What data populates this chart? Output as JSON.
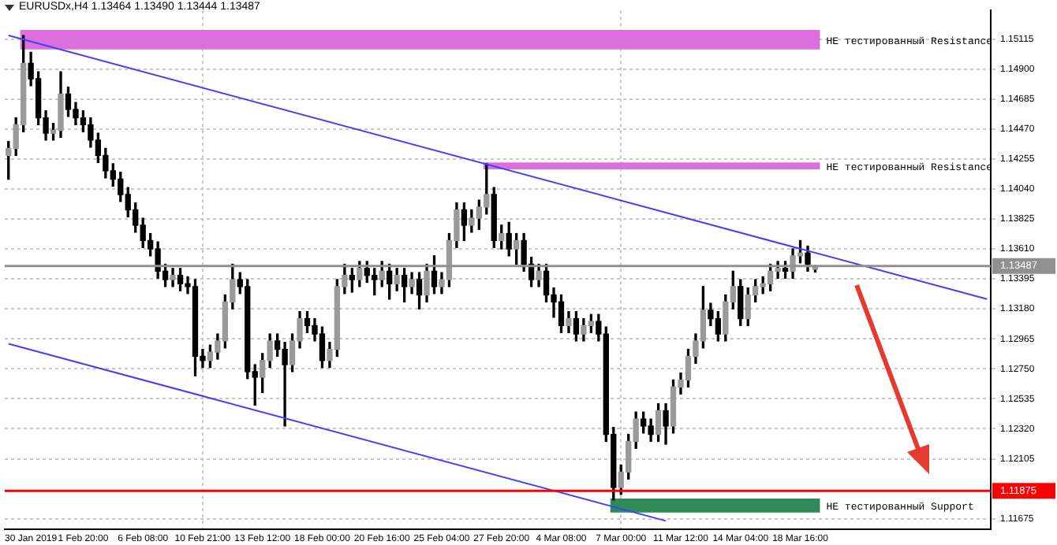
{
  "chart_data": {
    "type": "candlestick",
    "title": "EURUSDx,H4 1.13464 1.13490 1.13444 1.13487",
    "categories": [
      null,
      null,
      null,
      "30 Jan 2019",
      null,
      null,
      null,
      null,
      null,
      null,
      "1 Feb 20:00",
      null,
      null,
      null,
      null,
      null,
      null,
      null,
      "6 Feb 08:00",
      null,
      null,
      null,
      null,
      null,
      null,
      null,
      "10 Feb 21:00",
      null,
      null,
      null,
      null,
      null,
      null,
      null,
      "13 Feb 12:00",
      null,
      null,
      null,
      null,
      null,
      null,
      null,
      "18 Feb 00:00",
      null,
      null,
      null,
      null,
      null,
      null,
      null,
      "20 Feb 16:00",
      null,
      null,
      null,
      null,
      null,
      null,
      null,
      "25 Feb 04:00",
      null,
      null,
      null,
      null,
      null,
      null,
      null,
      "27 Feb 20:00",
      null,
      null,
      null,
      null,
      null,
      null,
      null,
      "4 Mar 08:00",
      null,
      null,
      null,
      null,
      null,
      null,
      null,
      "7 Mar 00:00",
      null,
      null,
      null,
      null,
      null,
      null,
      null,
      "11 Mar 12:00",
      null,
      null,
      null,
      null,
      null,
      null,
      null,
      "14 Mar 04:00",
      null,
      null,
      null,
      null,
      null,
      null,
      null,
      "18 Mar 16:00",
      null,
      null,
      null,
      null,
      null,
      null,
      null,
      null,
      null,
      null,
      null,
      null,
      null,
      null,
      null,
      null,
      null,
      null,
      null,
      null,
      null,
      null,
      null,
      null,
      null
    ],
    "ohlc": [
      [
        1.1428,
        1.1438,
        1.1411,
        1.1433
      ],
      [
        1.1433,
        1.1455,
        1.1428,
        1.145
      ],
      [
        1.145,
        1.1514,
        1.1445,
        1.1494
      ],
      [
        1.1494,
        1.1502,
        1.1478,
        1.1483
      ],
      [
        1.1483,
        1.1488,
        1.145,
        1.1455
      ],
      [
        1.1455,
        1.146,
        1.1439,
        1.1444
      ],
      [
        1.1444,
        1.1451,
        1.1439,
        1.1446
      ],
      [
        1.1446,
        1.1488,
        1.1441,
        1.1472
      ],
      [
        1.1472,
        1.1477,
        1.1456,
        1.1461
      ],
      [
        1.1461,
        1.1466,
        1.145,
        1.1455
      ],
      [
        1.1455,
        1.146,
        1.1445,
        1.145
      ],
      [
        1.145,
        1.1455,
        1.1434,
        1.1439
      ],
      [
        1.1439,
        1.1444,
        1.1423,
        1.1428
      ],
      [
        1.1428,
        1.1433,
        1.1412,
        1.1417
      ],
      [
        1.1417,
        1.1422,
        1.1406,
        1.1411
      ],
      [
        1.1411,
        1.1416,
        1.1395,
        1.14
      ],
      [
        1.14,
        1.1405,
        1.1384,
        1.1389
      ],
      [
        1.1389,
        1.1394,
        1.1373,
        1.1378
      ],
      [
        1.1378,
        1.1383,
        1.1362,
        1.1367
      ],
      [
        1.1367,
        1.1372,
        1.1356,
        1.1361
      ],
      [
        1.1361,
        1.1366,
        1.134,
        1.1345
      ],
      [
        1.1345,
        1.135,
        1.1334,
        1.1339
      ],
      [
        1.1339,
        1.1347,
        1.1334,
        1.1342
      ],
      [
        1.1342,
        1.1347,
        1.1331,
        1.1336
      ],
      [
        1.1336,
        1.1341,
        1.1329,
        1.1334
      ],
      [
        1.1334,
        1.1339,
        1.127,
        1.1284
      ],
      [
        1.1284,
        1.1289,
        1.1276,
        1.1281
      ],
      [
        1.1281,
        1.1292,
        1.1276,
        1.1287
      ],
      [
        1.1287,
        1.13,
        1.1282,
        1.1295
      ],
      [
        1.1295,
        1.1328,
        1.129,
        1.1323
      ],
      [
        1.1323,
        1.135,
        1.1318,
        1.1339
      ],
      [
        1.1339,
        1.1344,
        1.1329,
        1.1334
      ],
      [
        1.1334,
        1.1339,
        1.1268,
        1.1273
      ],
      [
        1.1273,
        1.1278,
        1.1249,
        1.1269
      ],
      [
        1.1269,
        1.1286,
        1.1258,
        1.1281
      ],
      [
        1.1281,
        1.13,
        1.1276,
        1.1295
      ],
      [
        1.1295,
        1.13,
        1.1284,
        1.1289
      ],
      [
        1.1289,
        1.1294,
        1.1234,
        1.1278
      ],
      [
        1.1278,
        1.13,
        1.1273,
        1.1295
      ],
      [
        1.1295,
        1.1316,
        1.129,
        1.1311
      ],
      [
        1.1311,
        1.1316,
        1.1301,
        1.1306
      ],
      [
        1.1306,
        1.1311,
        1.1295,
        1.13
      ],
      [
        1.13,
        1.1305,
        1.1276,
        1.1281
      ],
      [
        1.1281,
        1.1294,
        1.1276,
        1.1289
      ],
      [
        1.1289,
        1.1339,
        1.1284,
        1.1334
      ],
      [
        1.1334,
        1.135,
        1.1329,
        1.1342
      ],
      [
        1.1342,
        1.1347,
        1.133,
        1.1339
      ],
      [
        1.1339,
        1.1352,
        1.1334,
        1.1347
      ],
      [
        1.1347,
        1.1352,
        1.1337,
        1.1342
      ],
      [
        1.1342,
        1.1347,
        1.1328,
        1.1339
      ],
      [
        1.1339,
        1.1352,
        1.1334,
        1.1345
      ],
      [
        1.1345,
        1.135,
        1.1325,
        1.1336
      ],
      [
        1.1336,
        1.1347,
        1.1331,
        1.1342
      ],
      [
        1.1342,
        1.1347,
        1.1323,
        1.1334
      ],
      [
        1.1334,
        1.1344,
        1.1329,
        1.1339
      ],
      [
        1.1339,
        1.1344,
        1.1318,
        1.1328
      ],
      [
        1.1328,
        1.135,
        1.1323,
        1.1345
      ],
      [
        1.1345,
        1.1356,
        1.1329,
        1.1334
      ],
      [
        1.1334,
        1.1344,
        1.1329,
        1.1339
      ],
      [
        1.1339,
        1.1372,
        1.1334,
        1.1367
      ],
      [
        1.1367,
        1.1394,
        1.1362,
        1.1389
      ],
      [
        1.1389,
        1.1394,
        1.1367,
        1.1378
      ],
      [
        1.1378,
        1.1389,
        1.1373,
        1.1383
      ],
      [
        1.1383,
        1.1396,
        1.1375,
        1.1391
      ],
      [
        1.1391,
        1.1422,
        1.1386,
        1.14
      ],
      [
        1.14,
        1.1405,
        1.1362,
        1.1367
      ],
      [
        1.1367,
        1.1378,
        1.1361,
        1.1372
      ],
      [
        1.1372,
        1.138,
        1.1356,
        1.1361
      ],
      [
        1.1361,
        1.1372,
        1.135,
        1.1367
      ],
      [
        1.1367,
        1.1372,
        1.1345,
        1.135
      ],
      [
        1.135,
        1.1355,
        1.1334,
        1.1339
      ],
      [
        1.1339,
        1.135,
        1.1334,
        1.1345
      ],
      [
        1.1345,
        1.135,
        1.1323,
        1.1328
      ],
      [
        1.1328,
        1.1333,
        1.1312,
        1.1323
      ],
      [
        1.1323,
        1.1328,
        1.1301,
        1.1306
      ],
      [
        1.1306,
        1.1316,
        1.1301,
        1.1311
      ],
      [
        1.1311,
        1.1316,
        1.1295,
        1.13
      ],
      [
        1.13,
        1.1311,
        1.1295,
        1.1306
      ],
      [
        1.1306,
        1.1314,
        1.1301,
        1.1309
      ],
      [
        1.1309,
        1.1314,
        1.1295,
        1.13
      ],
      [
        1.13,
        1.1305,
        1.1223,
        1.1228
      ],
      [
        1.1228,
        1.1233,
        1.1181,
        1.119
      ],
      [
        1.119,
        1.1206,
        1.1185,
        1.1201
      ],
      [
        1.1201,
        1.1228,
        1.1196,
        1.1223
      ],
      [
        1.1223,
        1.1244,
        1.1218,
        1.1239
      ],
      [
        1.1239,
        1.1244,
        1.1229,
        1.1234
      ],
      [
        1.1234,
        1.1239,
        1.1223,
        1.1228
      ],
      [
        1.1228,
        1.125,
        1.1223,
        1.1245
      ],
      [
        1.1245,
        1.125,
        1.1221,
        1.1234
      ],
      [
        1.1234,
        1.1267,
        1.1229,
        1.1262
      ],
      [
        1.1262,
        1.1272,
        1.1257,
        1.1267
      ],
      [
        1.1267,
        1.1289,
        1.1262,
        1.1284
      ],
      [
        1.1284,
        1.13,
        1.1279,
        1.1295
      ],
      [
        1.1295,
        1.1334,
        1.129,
        1.1317
      ],
      [
        1.1317,
        1.1322,
        1.1306,
        1.1311
      ],
      [
        1.1311,
        1.1316,
        1.1295,
        1.13
      ],
      [
        1.13,
        1.1328,
        1.1295,
        1.1323
      ],
      [
        1.1323,
        1.1345,
        1.1318,
        1.1334
      ],
      [
        1.1334,
        1.1339,
        1.1306,
        1.1311
      ],
      [
        1.1311,
        1.1333,
        1.1306,
        1.1328
      ],
      [
        1.1328,
        1.1339,
        1.1323,
        1.1334
      ],
      [
        1.1334,
        1.1341,
        1.1329,
        1.1336
      ],
      [
        1.1336,
        1.135,
        1.1331,
        1.1345
      ],
      [
        1.1345,
        1.1352,
        1.134,
        1.1347
      ],
      [
        1.1347,
        1.1352,
        1.134,
        1.1345
      ],
      [
        1.1345,
        1.1361,
        1.134,
        1.1356
      ],
      [
        1.1356,
        1.1367,
        1.1351,
        1.1358
      ],
      [
        1.1358,
        1.1363,
        1.1345,
        1.135
      ],
      [
        1.13464,
        1.1349,
        1.13444,
        1.13487
      ],
      null,
      null,
      null,
      null,
      null,
      null,
      null,
      null,
      null,
      null,
      null,
      null,
      null,
      null,
      null,
      null,
      null,
      null,
      null,
      null,
      null,
      null,
      null
    ],
    "series": [
      {
        "type": "line",
        "color": "#4040ff",
        "values": [
          1.1514,
          null,
          null,
          null,
          null,
          null,
          null,
          null,
          null,
          null,
          null,
          null,
          null,
          null,
          null,
          null,
          null,
          null,
          null,
          null,
          null,
          null,
          null,
          null,
          null,
          null,
          null,
          null,
          null,
          null,
          null,
          null,
          null,
          null,
          null,
          null,
          null,
          null,
          null,
          null,
          null,
          null,
          null,
          null,
          null,
          null,
          null,
          null,
          null,
          null,
          null,
          null,
          null,
          null,
          null,
          null,
          null,
          null,
          null,
          null,
          null,
          null,
          null,
          null,
          null,
          null,
          null,
          null,
          null,
          null,
          null,
          null,
          null,
          null,
          null,
          null,
          null,
          null,
          null,
          null,
          null,
          null,
          null,
          null,
          null,
          null,
          null,
          null,
          null,
          null,
          null,
          null,
          null,
          null,
          null,
          null,
          null,
          null,
          null,
          null,
          null,
          null,
          null,
          null,
          null,
          null,
          null,
          null,
          null,
          null,
          null,
          null,
          null,
          null,
          null,
          null,
          null,
          null,
          null,
          null,
          null,
          null,
          null,
          null,
          null,
          null,
          null,
          null,
          null,
          null,
          null,
          1.1325
        ]
      },
      {
        "type": "line",
        "color": "#4040ff",
        "values": [
          1.1293,
          null,
          null,
          null,
          null,
          null,
          null,
          null,
          null,
          null,
          null,
          null,
          null,
          null,
          null,
          null,
          null,
          null,
          null,
          null,
          null,
          null,
          null,
          null,
          null,
          null,
          null,
          null,
          null,
          null,
          null,
          null,
          null,
          null,
          null,
          null,
          null,
          null,
          null,
          null,
          null,
          null,
          null,
          null,
          null,
          null,
          null,
          null,
          null,
          null,
          null,
          null,
          null,
          null,
          null,
          null,
          null,
          null,
          null,
          null,
          null,
          null,
          null,
          null,
          null,
          null,
          null,
          null,
          null,
          null,
          null,
          null,
          null,
          null,
          null,
          null,
          null,
          null,
          null,
          null,
          null,
          null,
          null,
          null,
          null,
          null,
          null,
          null,
          1.1166,
          null,
          null,
          null,
          null,
          null,
          null,
          null,
          null,
          null,
          null,
          null,
          null,
          null,
          null,
          null,
          null,
          null,
          null,
          null,
          null,
          null,
          null,
          null,
          null,
          null,
          null,
          null,
          null,
          null,
          null,
          null,
          null,
          null,
          null,
          null,
          null,
          null,
          null,
          null,
          null,
          null,
          null,
          null
        ]
      }
    ],
    "ylim": [
      1.116,
      1.1532
    ],
    "yticks": [
      {
        "value": 1.11675,
        "label": "1.11675"
      },
      {
        "value": 1.12105,
        "label": "1.12105"
      },
      {
        "value": 1.1232,
        "label": "1.12320"
      },
      {
        "value": 1.12535,
        "label": "1.12535"
      },
      {
        "value": 1.1275,
        "label": "1.12750"
      },
      {
        "value": 1.12965,
        "label": "1.12965"
      },
      {
        "value": 1.1318,
        "label": "1.13180"
      },
      {
        "value": 1.13395,
        "label": "1.13395"
      },
      {
        "value": 1.1361,
        "label": "1.13610"
      },
      {
        "value": 1.13825,
        "label": "1.13825"
      },
      {
        "value": 1.1404,
        "label": "1.14040"
      },
      {
        "value": 1.14255,
        "label": "1.14255"
      },
      {
        "value": 1.1447,
        "label": "1.14470"
      },
      {
        "value": 1.14685,
        "label": "1.14685"
      },
      {
        "value": 1.149,
        "label": "1.14900"
      },
      {
        "value": 1.15115,
        "label": "1.15115"
      }
    ],
    "ref_lines": [
      {
        "axis": "y",
        "value": 1.11875,
        "label": "1.11875",
        "color": "#ff0000"
      },
      {
        "axis": "y",
        "value": 1.13487,
        "label": "1.13487",
        "color": "#909090"
      }
    ],
    "bands": [
      {
        "axis": "y",
        "from": 1.1504,
        "to": 1.1518,
        "label": "НЕ тестированный Resistance",
        "color": "#dd6edd"
      },
      {
        "axis": "y",
        "from": 1.1418,
        "to": 1.1423,
        "label": "НЕ тестированный Resistance",
        "color": "#dd6edd"
      },
      {
        "axis": "y",
        "from": 1.1172,
        "to": 1.1182,
        "label": "НЕ тестированный Support",
        "color": "#2e8b57"
      }
    ],
    "grid": true
  }
}
